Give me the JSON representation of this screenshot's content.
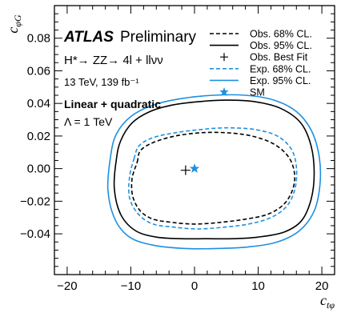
{
  "chart_data": {
    "type": "line",
    "header": {
      "experiment": "ATLAS",
      "status": "Preliminary",
      "process": "H*→ ZZ→ 4l + llνν",
      "energy_lumi": "13 TeV, 139 fb⁻¹",
      "fit_mode": "Linear + quadratic",
      "scale": "Λ = 1 TeV"
    },
    "xlabel": "c_tφ",
    "ylabel": "c_φG",
    "xlim": [
      -22,
      22
    ],
    "ylim": [
      -0.065,
      0.1
    ],
    "x_ticks": [
      -20,
      -10,
      0,
      10,
      20
    ],
    "x_tick_labels": [
      "−20",
      "−10",
      "0",
      "10",
      "20"
    ],
    "y_ticks": [
      -0.04,
      -0.02,
      0.0,
      0.02,
      0.04,
      0.06,
      0.08
    ],
    "y_tick_labels": [
      "−0.04",
      "−0.02",
      "0.00",
      "0.02",
      "0.04",
      "0.06",
      "0.08"
    ],
    "legend_position": "top-right",
    "legend": [
      {
        "label": "Obs. 68% CL.",
        "style": "dashed",
        "color": "#000000"
      },
      {
        "label": "Obs. 95% CL.",
        "style": "solid",
        "color": "#000000"
      },
      {
        "label": "Obs. Best Fit",
        "style": "plus",
        "color": "#000000"
      },
      {
        "label": "Exp. 68% CL.",
        "style": "dashed",
        "color": "#1e90e0"
      },
      {
        "label": "Exp. 95% CL.",
        "style": "solid",
        "color": "#1e90e0"
      },
      {
        "label": "SM",
        "style": "star",
        "color": "#1e90e0"
      }
    ],
    "best_fit": {
      "x": -1.4,
      "y": -0.001
    },
    "sm_point": {
      "x": 0.0,
      "y": 0.0
    },
    "contours": [
      {
        "name": "Obs. 68% CL.",
        "color": "#000000",
        "style": "dashed",
        "points": [
          [
            -9.0,
            0.004
          ],
          [
            -8.5,
            0.011
          ],
          [
            -6.5,
            0.016
          ],
          [
            -3.0,
            0.02
          ],
          [
            1.0,
            0.022
          ],
          [
            5.0,
            0.022
          ],
          [
            9.0,
            0.02
          ],
          [
            12.5,
            0.015
          ],
          [
            14.8,
            0.007
          ],
          [
            15.7,
            -0.003
          ],
          [
            15.4,
            -0.013
          ],
          [
            14.0,
            -0.022
          ],
          [
            11.5,
            -0.028
          ],
          [
            8.0,
            -0.031
          ],
          [
            4.0,
            -0.033
          ],
          [
            0.0,
            -0.034
          ],
          [
            -3.5,
            -0.033
          ],
          [
            -6.5,
            -0.031
          ],
          [
            -8.5,
            -0.026
          ],
          [
            -9.7,
            -0.017
          ],
          [
            -9.8,
            -0.006
          ]
        ]
      },
      {
        "name": "Obs. 95% CL.",
        "color": "#000000",
        "style": "solid",
        "points": [
          [
            -12.3,
            0.005
          ],
          [
            -11.6,
            0.017
          ],
          [
            -9.8,
            0.028
          ],
          [
            -7.0,
            0.035
          ],
          [
            -3.5,
            0.039
          ],
          [
            0.5,
            0.041
          ],
          [
            5.0,
            0.042
          ],
          [
            9.5,
            0.041
          ],
          [
            13.5,
            0.037
          ],
          [
            16.7,
            0.028
          ],
          [
            18.3,
            0.014
          ],
          [
            18.8,
            -0.003
          ],
          [
            18.3,
            -0.019
          ],
          [
            16.8,
            -0.032
          ],
          [
            14.0,
            -0.039
          ],
          [
            10.0,
            -0.042
          ],
          [
            6.0,
            -0.043
          ],
          [
            2.0,
            -0.043
          ],
          [
            -2.0,
            -0.043
          ],
          [
            -6.0,
            -0.042
          ],
          [
            -9.3,
            -0.038
          ],
          [
            -11.6,
            -0.028
          ],
          [
            -12.6,
            -0.012
          ]
        ]
      },
      {
        "name": "Exp. 68% CL.",
        "color": "#1e90e0",
        "style": "dashed",
        "points": [
          [
            -9.5,
            0.006
          ],
          [
            -8.7,
            0.014
          ],
          [
            -6.5,
            0.019
          ],
          [
            -3.0,
            0.022
          ],
          [
            1.0,
            0.024
          ],
          [
            5.0,
            0.025
          ],
          [
            9.5,
            0.024
          ],
          [
            13.0,
            0.02
          ],
          [
            15.2,
            0.012
          ],
          [
            16.0,
            0.001
          ],
          [
            15.8,
            -0.012
          ],
          [
            14.5,
            -0.023
          ],
          [
            12.0,
            -0.03
          ],
          [
            8.5,
            -0.034
          ],
          [
            4.5,
            -0.036
          ],
          [
            0.5,
            -0.037
          ],
          [
            -3.0,
            -0.036
          ],
          [
            -6.5,
            -0.034
          ],
          [
            -8.8,
            -0.028
          ],
          [
            -10.2,
            -0.018
          ],
          [
            -10.2,
            -0.005
          ]
        ]
      },
      {
        "name": "Exp. 95% CL.",
        "color": "#1e90e0",
        "style": "solid",
        "points": [
          [
            -13.2,
            0.007
          ],
          [
            -12.3,
            0.021
          ],
          [
            -10.0,
            0.032
          ],
          [
            -6.5,
            0.039
          ],
          [
            -2.0,
            0.043
          ],
          [
            3.0,
            0.045
          ],
          [
            8.0,
            0.045
          ],
          [
            12.5,
            0.042
          ],
          [
            16.0,
            0.035
          ],
          [
            18.4,
            0.023
          ],
          [
            19.6,
            0.007
          ],
          [
            19.7,
            -0.01
          ],
          [
            18.8,
            -0.026
          ],
          [
            16.5,
            -0.038
          ],
          [
            13.0,
            -0.045
          ],
          [
            8.5,
            -0.048
          ],
          [
            3.5,
            -0.049
          ],
          [
            -1.5,
            -0.049
          ],
          [
            -6.5,
            -0.047
          ],
          [
            -10.2,
            -0.042
          ],
          [
            -12.5,
            -0.031
          ],
          [
            -13.6,
            -0.013
          ]
        ]
      }
    ]
  }
}
